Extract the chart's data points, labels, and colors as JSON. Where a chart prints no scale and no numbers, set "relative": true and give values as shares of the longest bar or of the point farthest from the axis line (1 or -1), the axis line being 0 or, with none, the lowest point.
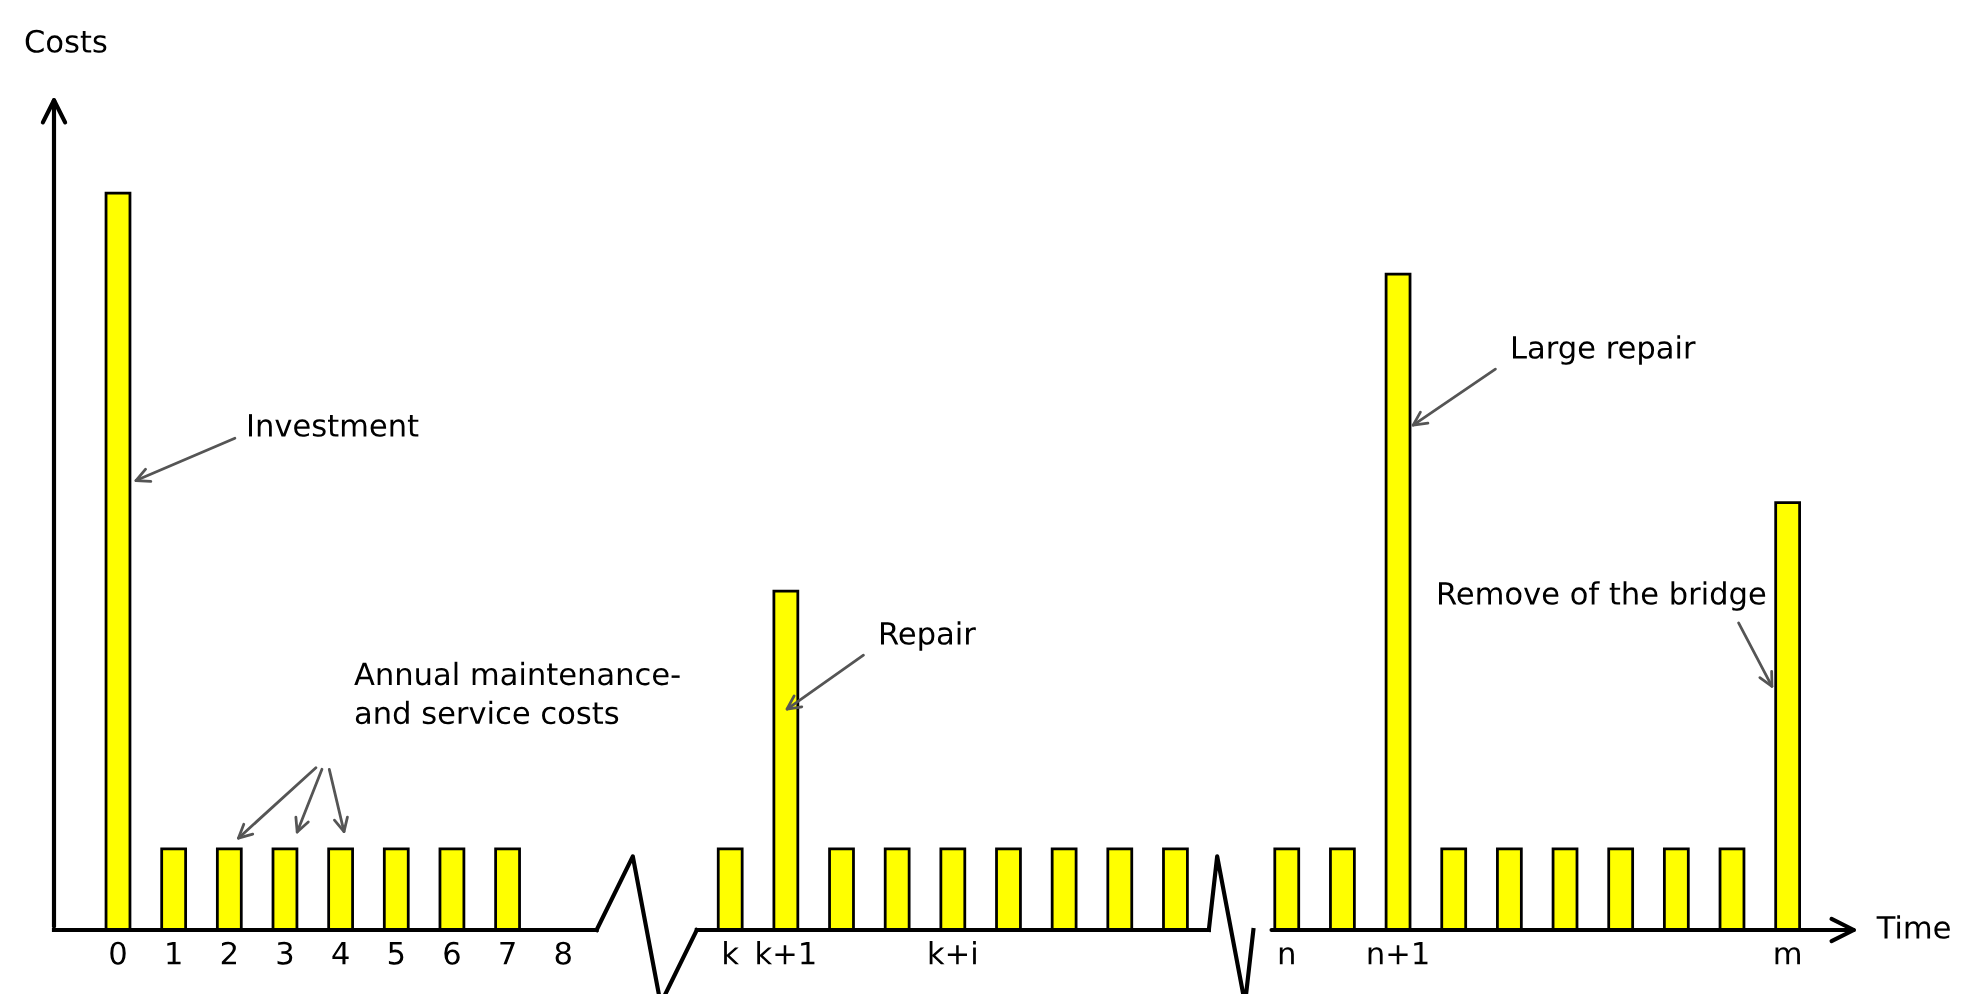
{
  "chart_data": {
    "type": "bar",
    "relative": true,
    "xlabel": "Time",
    "ylabel": "Costs",
    "color": "#ffff00",
    "categories": [
      "0",
      "1",
      "2",
      "3",
      "4",
      "5",
      "6",
      "7",
      "8",
      null,
      null,
      "k",
      "k+1",
      null,
      null,
      "k+i",
      null,
      null,
      null,
      null,
      null,
      "n",
      null,
      "n+1",
      null,
      null,
      null,
      null,
      null,
      null,
      "m"
    ],
    "values": [
      1,
      0.11,
      0.11,
      0.11,
      0.11,
      0.11,
      0.11,
      0.11,
      null,
      null,
      null,
      0.11,
      0.46,
      0.11,
      0.11,
      0.11,
      0.11,
      0.11,
      0.11,
      0.11,
      null,
      0.11,
      0.11,
      0.89,
      0.11,
      0.11,
      0.11,
      0.11,
      0.11,
      0.11,
      0.58
    ],
    "annotations": [
      "Investment",
      "Annual maintenance-\nand service costs",
      "Repair",
      "Large repair",
      "Remove of the bridge"
    ]
  }
}
